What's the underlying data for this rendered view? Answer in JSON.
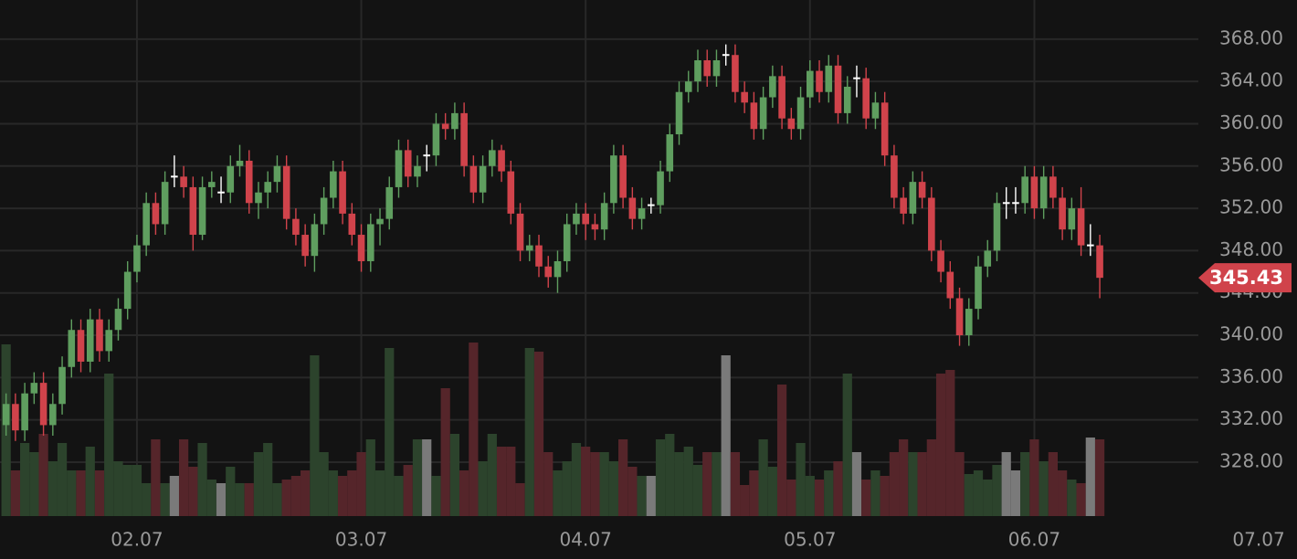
{
  "chart_data": {
    "type": "candlestick",
    "x": [
      0,
      1,
      2,
      3,
      4,
      5,
      6,
      7,
      8,
      9,
      10,
      11,
      12,
      13,
      14,
      15,
      16,
      17,
      18,
      19,
      20,
      21,
      22,
      23,
      24,
      25,
      26,
      27,
      28,
      29,
      30,
      31,
      32,
      33,
      34,
      35,
      36,
      37,
      38,
      39,
      40,
      41,
      42,
      43,
      44,
      45,
      46,
      47,
      48,
      49,
      50,
      51,
      52,
      53,
      54,
      55,
      56,
      57,
      58,
      59,
      60,
      61,
      62,
      63,
      64,
      65,
      66,
      67,
      68,
      69,
      70,
      71,
      72,
      73,
      74,
      75,
      76,
      77,
      78,
      79,
      80,
      81,
      82,
      83,
      84,
      85,
      86,
      87,
      88,
      89,
      90,
      91,
      92,
      93,
      94,
      95,
      96,
      97,
      98,
      99,
      100,
      101,
      102,
      103,
      104,
      105,
      106,
      107,
      108,
      109,
      110,
      111,
      112,
      113,
      114,
      115,
      116,
      117
    ],
    "open": [
      331.5,
      333.5,
      331,
      334.5,
      335.5,
      331.5,
      333.5,
      337,
      340.5,
      337.5,
      341.5,
      338.5,
      340.5,
      342.5,
      346,
      348.5,
      352.5,
      350.5,
      355,
      355,
      354,
      349.5,
      354,
      353.5,
      353.5,
      356,
      356.5,
      352.5,
      353.5,
      354.5,
      356,
      351,
      349.5,
      347.5,
      350.5,
      353,
      355.5,
      351.5,
      349.5,
      347,
      350.5,
      351,
      354,
      357.5,
      355,
      357,
      357,
      360,
      359.5,
      361,
      356,
      353.5,
      356,
      357.5,
      355.5,
      351.5,
      348,
      348.5,
      346.5,
      345.5,
      347,
      350.5,
      351.5,
      350.5,
      350,
      352.5,
      357,
      353,
      351,
      352.3,
      352.3,
      355.5,
      359,
      363,
      364,
      366,
      364.5,
      366.5,
      366.5,
      363,
      362,
      359.5,
      362.5,
      364.5,
      360.5,
      359.5,
      362.5,
      365,
      363,
      365.5,
      361,
      364.3,
      364.3,
      360.5,
      362,
      357,
      353,
      351.5,
      354.5,
      353,
      348,
      346,
      343.5,
      340,
      342.5,
      346.5,
      348,
      352.5,
      352.5,
      352.5,
      355,
      352,
      355,
      353,
      350,
      352,
      348.5,
      348.5
    ],
    "high": [
      334.5,
      334.5,
      335.5,
      336.5,
      336.5,
      334.5,
      338,
      341.5,
      341.5,
      342.5,
      342.5,
      341.5,
      343.5,
      347,
      349.5,
      353.5,
      353.5,
      355.5,
      357,
      356,
      355,
      355,
      355.5,
      355,
      357,
      358,
      357.5,
      354.5,
      355.5,
      357,
      357,
      352,
      350.5,
      351.5,
      354,
      356.5,
      356.5,
      352.5,
      350.5,
      351.5,
      352,
      355,
      358.5,
      358.5,
      357,
      358,
      361,
      361,
      362,
      362,
      357,
      357,
      358.5,
      358,
      356.5,
      352.5,
      349.5,
      349.5,
      347.5,
      348,
      351.5,
      352.5,
      352.5,
      351.5,
      353.5,
      358,
      358,
      354,
      353,
      353,
      356.5,
      360,
      364,
      365,
      367,
      367,
      367,
      367.5,
      367.5,
      364,
      363,
      363.5,
      365.5,
      365.5,
      361.5,
      363.5,
      366,
      366,
      366.5,
      366.5,
      364.5,
      365.5,
      365.3,
      363,
      363,
      358,
      354,
      355.5,
      355.5,
      354,
      349,
      347,
      344.5,
      343.5,
      347.5,
      349,
      353.5,
      354,
      354,
      356,
      356,
      356,
      356,
      354,
      353,
      354,
      350.5,
      349.5
    ],
    "low": [
      330.5,
      330,
      330,
      333.5,
      330.5,
      330.5,
      332.5,
      336,
      336.5,
      336.5,
      337.5,
      337.5,
      339.5,
      341.5,
      345,
      347.5,
      349.5,
      349.5,
      354,
      353,
      348,
      349,
      353,
      352.5,
      352.5,
      355,
      351.5,
      351,
      352,
      353.5,
      350,
      348.5,
      346.5,
      346,
      349.5,
      352,
      350.5,
      348.5,
      346,
      346,
      348.5,
      350,
      353,
      354,
      354,
      355.5,
      356,
      358.5,
      358.5,
      355,
      352.5,
      352.5,
      355,
      354.5,
      350.5,
      347,
      347,
      345.5,
      344.5,
      344,
      346,
      349.5,
      349,
      349,
      349,
      351.5,
      352,
      350,
      350,
      351.5,
      351.5,
      354.5,
      358,
      362,
      363,
      363.5,
      363.5,
      365.5,
      362,
      361,
      358.5,
      358.5,
      361.5,
      359.5,
      358.5,
      358.5,
      361.5,
      362,
      362,
      360,
      360,
      362.5,
      359.5,
      359.5,
      356,
      352,
      350.5,
      350.5,
      352,
      347,
      345,
      342.5,
      339,
      339,
      341.5,
      345.5,
      347,
      351,
      351.5,
      351.5,
      351,
      351,
      352,
      349,
      349,
      347.5,
      347.5,
      343.5
    ],
    "close": [
      333.5,
      331,
      334.5,
      335.5,
      331.5,
      333.5,
      337,
      340.5,
      337.5,
      341.5,
      338.5,
      340.5,
      342.5,
      346,
      348.5,
      352.5,
      350.5,
      354.5,
      355,
      354,
      349.5,
      354,
      354.5,
      353.5,
      356,
      356.5,
      352.5,
      353.5,
      354.5,
      356,
      351,
      349.5,
      347.5,
      350.5,
      353,
      355.5,
      351.5,
      349.5,
      347,
      350.5,
      351,
      354,
      357.5,
      355,
      356,
      357,
      360,
      359.5,
      361,
      356,
      353.5,
      356,
      357.5,
      355.5,
      351.5,
      348,
      348.5,
      346.5,
      345.5,
      347,
      350.5,
      351.5,
      350.5,
      350,
      352.5,
      357,
      353,
      351,
      352,
      352.3,
      355.5,
      359,
      363,
      364,
      366,
      364.5,
      366,
      366.5,
      363,
      362,
      359.5,
      362.5,
      364.5,
      360.5,
      359.5,
      362.5,
      365,
      363,
      365.5,
      361,
      363.5,
      364.3,
      360.5,
      362,
      357,
      353,
      351.5,
      354.5,
      353,
      348,
      346,
      343.5,
      340,
      342.5,
      346.5,
      348,
      352.5,
      352.5,
      352.5,
      355,
      352,
      355,
      353,
      350,
      352,
      348.5,
      348.5,
      345.43
    ],
    "volume": [
      94,
      25,
      40,
      35,
      45,
      30,
      40,
      25,
      25,
      38,
      25,
      78,
      30,
      28,
      28,
      18,
      42,
      18,
      22,
      42,
      27,
      40,
      20,
      18,
      27,
      18,
      18,
      35,
      40,
      18,
      20,
      22,
      25,
      88,
      35,
      25,
      22,
      25,
      35,
      42,
      25,
      92,
      22,
      28,
      42,
      42,
      22,
      70,
      45,
      25,
      95,
      30,
      45,
      38,
      38,
      18,
      92,
      90,
      35,
      25,
      30,
      40,
      38,
      35,
      35,
      30,
      42,
      27,
      22,
      22,
      42,
      45,
      35,
      38,
      28,
      35,
      35,
      88,
      35,
      17,
      25,
      42,
      27,
      72,
      20,
      40,
      22,
      20,
      25,
      30,
      78,
      35,
      20,
      25,
      22,
      35,
      42,
      35,
      35,
      42,
      78,
      80,
      35,
      23,
      25,
      20,
      28,
      35,
      25,
      35,
      42,
      30,
      35,
      25,
      20,
      18,
      43,
      42
    ],
    "xlim": [
      -0.65,
      138.1
    ],
    "xticks": [
      {
        "value": 14,
        "label": "02.07"
      },
      {
        "value": 38,
        "label": "03.07"
      },
      {
        "value": 62,
        "label": "04.07"
      },
      {
        "value": 86,
        "label": "05.07"
      },
      {
        "value": 110,
        "label": "06.07"
      },
      {
        "value": 134,
        "label": "07.07"
      }
    ],
    "ylim": [
      322.9,
      371.7
    ],
    "yticks": [
      {
        "value": 328,
        "label": "328.00"
      },
      {
        "value": 332,
        "label": "332.00"
      },
      {
        "value": 336,
        "label": "336.00"
      },
      {
        "value": 340,
        "label": "340.00"
      },
      {
        "value": 344,
        "label": "344.00"
      },
      {
        "value": 348,
        "label": "348.00"
      },
      {
        "value": 352,
        "label": "352.00"
      },
      {
        "value": 356,
        "label": "356.00"
      },
      {
        "value": 360,
        "label": "360.00"
      },
      {
        "value": 364,
        "label": "364.00"
      },
      {
        "value": 368,
        "label": "368.00"
      }
    ],
    "volume_lim": [
      0,
      100
    ],
    "grid": true,
    "up_color": "#5f9e5f",
    "down_color": "#d0434b",
    "doji_color": "#ffffff",
    "volume_up_color": "#2c432c",
    "volume_down_color": "#55252a",
    "volume_doji_color": "#7a7a7a",
    "price_tag_color": "#d0434b"
  }
}
